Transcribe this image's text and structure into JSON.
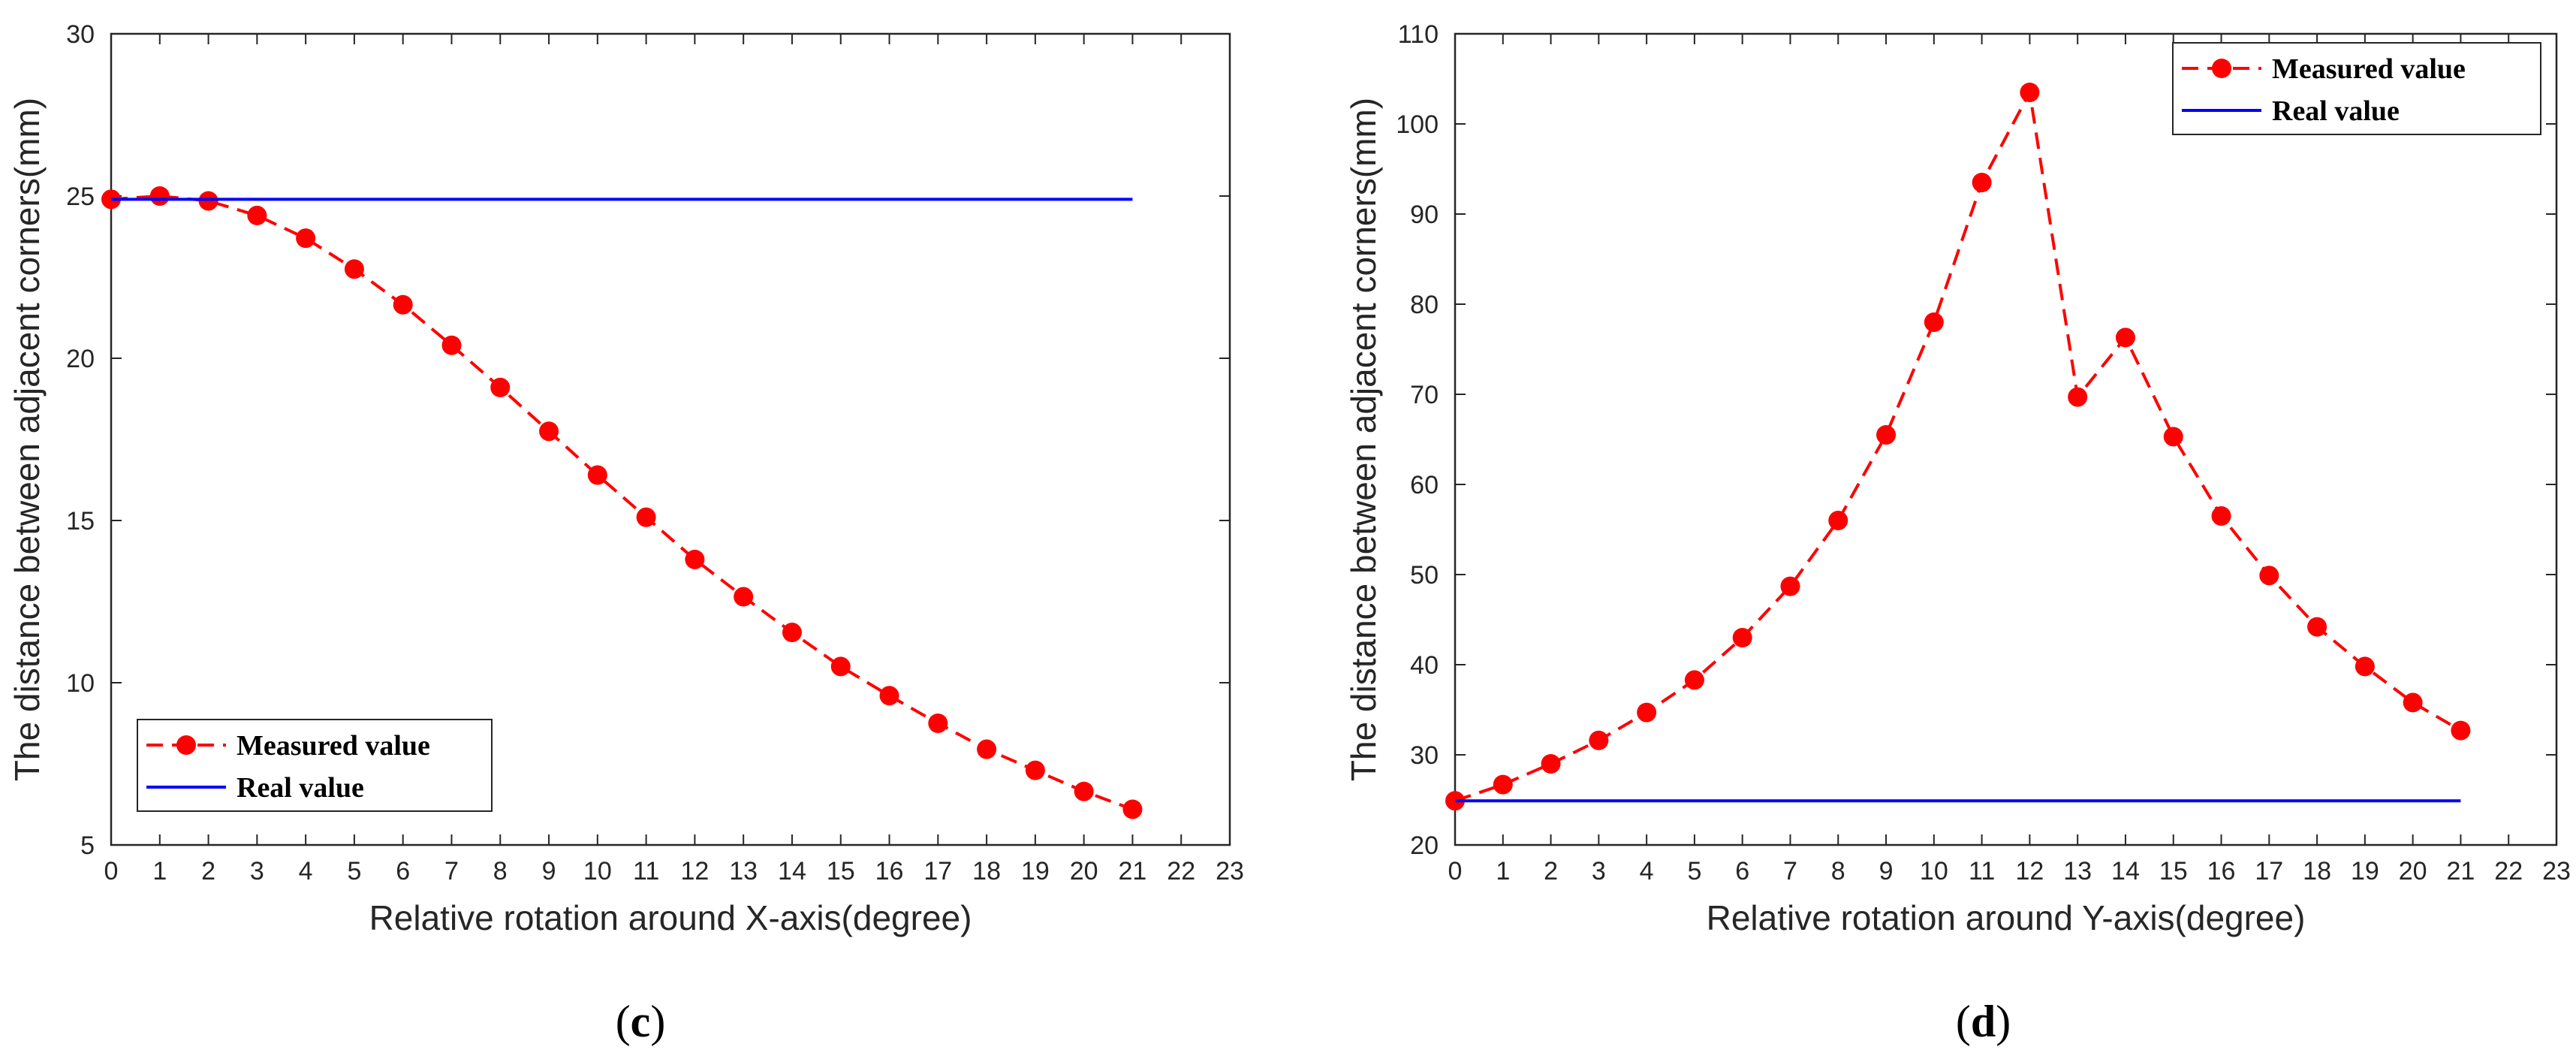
{
  "colors": {
    "measured": "#ff0000",
    "real": "#0000ff",
    "axis": "#262626"
  },
  "chart_data": [
    {
      "type": "line",
      "panel": "c",
      "xlabel": "Relative rotation around X-axis(degree)",
      "ylabel": "The distance between adjacent corners(mm)",
      "xlim": [
        0,
        23
      ],
      "ylim": [
        5,
        30
      ],
      "xticks": [
        0,
        1,
        2,
        3,
        4,
        5,
        6,
        7,
        8,
        9,
        10,
        11,
        12,
        13,
        14,
        15,
        16,
        17,
        18,
        19,
        20,
        21,
        22,
        23
      ],
      "yticks": [
        5,
        10,
        15,
        20,
        25,
        30
      ],
      "legend_position": "bottom-left",
      "series": [
        {
          "name": "Measured value",
          "style": "dashed-with-markers",
          "x": [
            0,
            1,
            2,
            3,
            4,
            5,
            6,
            7,
            8,
            9,
            10,
            11,
            12,
            13,
            14,
            15,
            16,
            17,
            18,
            19,
            20,
            21
          ],
          "values": [
            24.9,
            25.0,
            24.85,
            24.4,
            23.7,
            22.75,
            21.65,
            20.4,
            19.1,
            17.75,
            16.4,
            15.1,
            13.8,
            12.65,
            11.55,
            10.5,
            9.6,
            8.75,
            7.95,
            7.3,
            6.65,
            6.1
          ]
        },
        {
          "name": "Real value",
          "style": "solid",
          "x": [
            0,
            21
          ],
          "values": [
            24.9,
            24.9
          ]
        }
      ]
    },
    {
      "type": "line",
      "panel": "d",
      "xlabel": "Relative rotation around Y-axis(degree)",
      "ylabel": "The distance between adjacent corners(mm)",
      "xlim": [
        0,
        23
      ],
      "ylim": [
        20,
        110
      ],
      "xticks": [
        0,
        1,
        2,
        3,
        4,
        5,
        6,
        7,
        8,
        9,
        10,
        11,
        12,
        13,
        14,
        15,
        16,
        17,
        18,
        19,
        20,
        21,
        22,
        23
      ],
      "yticks": [
        20,
        30,
        40,
        50,
        60,
        70,
        80,
        90,
        100,
        110
      ],
      "legend_position": "top-right",
      "series": [
        {
          "name": "Measured value",
          "style": "dashed-with-markers",
          "x": [
            0,
            1,
            2,
            3,
            4,
            5,
            6,
            7,
            8,
            9,
            10,
            11,
            12,
            13,
            14,
            15,
            16,
            17,
            18,
            19,
            20,
            21
          ],
          "values": [
            24.9,
            26.7,
            29.0,
            31.6,
            34.7,
            38.3,
            43.0,
            48.7,
            56.0,
            65.5,
            78.0,
            93.5,
            103.5,
            69.7,
            76.3,
            65.3,
            56.5,
            49.9,
            44.2,
            39.8,
            35.8,
            32.7
          ]
        },
        {
          "name": "Real value",
          "style": "solid",
          "x": [
            0,
            21
          ],
          "values": [
            24.9,
            24.9
          ]
        }
      ]
    }
  ],
  "panel_labels": [
    {
      "open": "(",
      "letter": "c",
      "close": ")"
    },
    {
      "open": "(",
      "letter": "d",
      "close": ")"
    }
  ]
}
